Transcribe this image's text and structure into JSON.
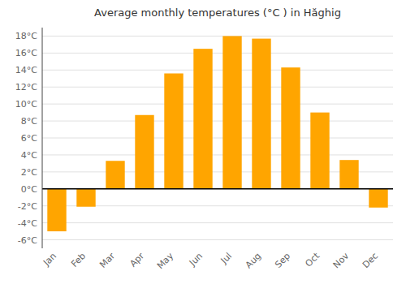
{
  "chart_data": {
    "type": "bar",
    "title": "Average monthly temperatures (°C ) in Hăghig",
    "categories": [
      "Jan",
      "Feb",
      "Mar",
      "Apr",
      "May",
      "Jun",
      "Jul",
      "Aug",
      "Sep",
      "Oct",
      "Nov",
      "Dec"
    ],
    "values": [
      -5.0,
      -2.1,
      3.3,
      8.7,
      13.6,
      16.5,
      18.0,
      17.7,
      14.3,
      9.0,
      3.4,
      -2.2
    ],
    "color": "#FFA500",
    "ylim": [
      -7,
      19
    ],
    "yticks": [
      {
        "value": -6,
        "label": "-6°C"
      },
      {
        "value": -4,
        "label": "-4°C"
      },
      {
        "value": -2,
        "label": "-2°C"
      },
      {
        "value": 0,
        "label": "0°C"
      },
      {
        "value": 2,
        "label": "2°C"
      },
      {
        "value": 4,
        "label": "4°C"
      },
      {
        "value": 6,
        "label": "6°C"
      },
      {
        "value": 8,
        "label": "8°C"
      },
      {
        "value": 10,
        "label": "10°C"
      },
      {
        "value": 12,
        "label": "12°C"
      },
      {
        "value": 14,
        "label": "14°C"
      },
      {
        "value": 16,
        "label": "16°C"
      },
      {
        "value": 18,
        "label": "18°C"
      }
    ],
    "grid": true
  }
}
